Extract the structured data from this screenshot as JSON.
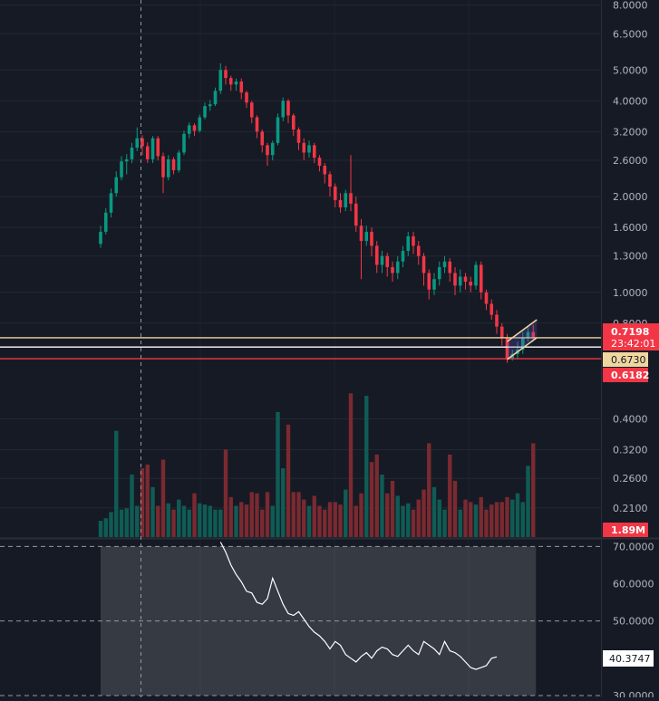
{
  "chart_data": [
    {
      "type": "candlestick",
      "scale": "log",
      "price_axis": {
        "ticks": [
          "8.0000",
          "6.5000",
          "5.0000",
          "4.0000",
          "3.2000",
          "2.6000",
          "2.0000",
          "1.6000",
          "1.3000",
          "1.0000",
          "0.8000",
          "0.4000",
          "0.3200",
          "0.2600",
          "0.2100"
        ],
        "tick_values": [
          8.0,
          6.5,
          5.0,
          4.0,
          3.2,
          2.6,
          2.0,
          1.6,
          1.3,
          1.0,
          0.8,
          0.4,
          0.32,
          0.26,
          0.21
        ],
        "range": [
          0.17,
          8.3
        ]
      },
      "price_labels": {
        "current_price": "0.7198",
        "countdown": "23:42:01",
        "crosshair_price": "0.6730",
        "support_price": "0.6182"
      },
      "volume_label": "1.89M",
      "horizontal_lines": [
        {
          "value": 0.7198,
          "color": "#f0d7a0"
        },
        {
          "value": 0.673,
          "color": "#ffffff"
        },
        {
          "value": 0.6182,
          "color": "#f23645"
        }
      ],
      "channel": {
        "lower": [
          0.615,
          0.72
        ],
        "upper": [
          0.7,
          0.82
        ]
      },
      "candles": [
        [
          1.42,
          1.55,
          1.38,
          1.62
        ],
        [
          1.55,
          1.78,
          1.52,
          1.84
        ],
        [
          1.78,
          2.05,
          1.72,
          2.12
        ],
        [
          2.05,
          2.3,
          2.0,
          2.4
        ],
        [
          2.3,
          2.58,
          2.25,
          2.68
        ],
        [
          2.58,
          2.62,
          2.35,
          2.72
        ],
        [
          2.62,
          2.85,
          2.55,
          2.95
        ],
        [
          2.85,
          3.05,
          2.78,
          3.3
        ],
        [
          3.05,
          2.88,
          2.7,
          3.12
        ],
        [
          2.88,
          2.62,
          2.55,
          2.96
        ],
        [
          2.62,
          3.05,
          2.55,
          3.1
        ],
        [
          3.05,
          2.68,
          2.6,
          3.1
        ],
        [
          2.68,
          2.3,
          2.05,
          2.75
        ],
        [
          2.3,
          2.62,
          2.25,
          2.7
        ],
        [
          2.62,
          2.42,
          2.35,
          2.66
        ],
        [
          2.42,
          2.75,
          2.38,
          2.8
        ],
        [
          2.75,
          3.15,
          2.7,
          3.22
        ],
        [
          3.15,
          3.35,
          3.05,
          3.42
        ],
        [
          3.35,
          3.22,
          3.1,
          3.4
        ],
        [
          3.22,
          3.55,
          3.18,
          3.62
        ],
        [
          3.55,
          3.85,
          3.5,
          3.95
        ],
        [
          3.85,
          3.9,
          3.72,
          4.02
        ],
        [
          3.9,
          4.3,
          3.85,
          4.4
        ],
        [
          4.3,
          5.0,
          4.2,
          5.25
        ],
        [
          5.0,
          4.72,
          4.5,
          5.15
        ],
        [
          4.72,
          4.5,
          4.3,
          4.8
        ],
        [
          4.5,
          4.6,
          4.3,
          4.7
        ],
        [
          4.6,
          4.25,
          4.05,
          4.7
        ],
        [
          4.25,
          3.95,
          3.8,
          4.3
        ],
        [
          3.95,
          3.55,
          3.4,
          4.0
        ],
        [
          3.55,
          3.2,
          3.05,
          3.6
        ],
        [
          3.2,
          2.9,
          2.75,
          3.25
        ],
        [
          2.9,
          2.7,
          2.5,
          2.95
        ],
        [
          2.7,
          2.95,
          2.6,
          3.0
        ],
        [
          2.95,
          3.55,
          2.9,
          3.65
        ],
        [
          3.55,
          4.0,
          3.45,
          4.1
        ],
        [
          4.0,
          3.6,
          3.4,
          4.05
        ],
        [
          3.6,
          3.25,
          3.1,
          3.65
        ],
        [
          3.25,
          2.95,
          2.8,
          3.3
        ],
        [
          2.95,
          2.75,
          2.6,
          3.05
        ],
        [
          2.75,
          2.9,
          2.65,
          3.0
        ],
        [
          2.9,
          2.65,
          2.55,
          2.95
        ],
        [
          2.65,
          2.5,
          2.4,
          2.7
        ],
        [
          2.5,
          2.35,
          2.2,
          2.55
        ],
        [
          2.35,
          2.15,
          2.0,
          2.4
        ],
        [
          2.15,
          1.95,
          1.85,
          2.2
        ],
        [
          1.95,
          1.85,
          1.78,
          2.05
        ],
        [
          1.85,
          2.05,
          1.8,
          2.1
        ],
        [
          2.05,
          1.9,
          1.8,
          2.7
        ],
        [
          1.9,
          1.62,
          1.55,
          2.0
        ],
        [
          1.62,
          1.45,
          1.1,
          1.7
        ],
        [
          1.45,
          1.55,
          1.4,
          1.62
        ],
        [
          1.55,
          1.4,
          1.3,
          1.6
        ],
        [
          1.4,
          1.22,
          1.15,
          1.45
        ],
        [
          1.22,
          1.3,
          1.15,
          1.35
        ],
        [
          1.3,
          1.2,
          1.12,
          1.33
        ],
        [
          1.2,
          1.15,
          1.08,
          1.25
        ],
        [
          1.15,
          1.25,
          1.1,
          1.3
        ],
        [
          1.25,
          1.35,
          1.2,
          1.4
        ],
        [
          1.35,
          1.5,
          1.3,
          1.55
        ],
        [
          1.5,
          1.4,
          1.32,
          1.55
        ],
        [
          1.4,
          1.3,
          1.22,
          1.45
        ],
        [
          1.3,
          1.15,
          1.05,
          1.33
        ],
        [
          1.15,
          1.02,
          0.95,
          1.18
        ],
        [
          1.02,
          1.1,
          0.98,
          1.15
        ],
        [
          1.1,
          1.2,
          1.05,
          1.25
        ],
        [
          1.2,
          1.25,
          1.15,
          1.3
        ],
        [
          1.25,
          1.15,
          1.08,
          1.28
        ],
        [
          1.15,
          1.05,
          0.98,
          1.2
        ],
        [
          1.05,
          1.12,
          1.0,
          1.18
        ],
        [
          1.12,
          1.08,
          1.02,
          1.15
        ],
        [
          1.08,
          1.05,
          1.0,
          1.12
        ],
        [
          1.05,
          1.22,
          1.02,
          1.25
        ],
        [
          1.22,
          1.0,
          0.95,
          1.25
        ],
        [
          1.0,
          0.92,
          0.88,
          1.02
        ],
        [
          0.92,
          0.85,
          0.82,
          0.95
        ],
        [
          0.85,
          0.78,
          0.74,
          0.88
        ],
        [
          0.78,
          0.72,
          0.68,
          0.8
        ],
        [
          0.72,
          0.62,
          0.6,
          0.74
        ],
        [
          0.62,
          0.64,
          0.61,
          0.66
        ],
        [
          0.64,
          0.66,
          0.62,
          0.7
        ],
        [
          0.66,
          0.72,
          0.64,
          0.75
        ],
        [
          0.72,
          0.75,
          0.7,
          0.78
        ],
        [
          0.75,
          0.7198,
          0.7,
          0.79
        ]
      ],
      "volume": [
        0.13,
        0.15,
        0.2,
        0.85,
        0.22,
        0.23,
        0.5,
        0.25,
        0.55,
        0.58,
        0.4,
        0.25,
        0.62,
        0.27,
        0.22,
        0.3,
        0.25,
        0.22,
        0.35,
        0.27,
        0.26,
        0.25,
        0.22,
        0.22,
        0.7,
        0.32,
        0.25,
        0.28,
        0.26,
        0.36,
        0.35,
        0.22,
        0.36,
        0.25,
        1.0,
        0.55,
        0.9,
        0.36,
        0.36,
        0.3,
        0.25,
        0.33,
        0.25,
        0.22,
        0.28,
        0.28,
        0.26,
        0.38,
        1.15,
        0.25,
        0.35,
        1.13,
        0.6,
        0.66,
        0.5,
        0.35,
        0.45,
        0.33,
        0.25,
        0.27,
        0.22,
        0.3,
        0.38,
        0.75,
        0.4,
        0.3,
        0.22,
        0.66,
        0.45,
        0.22,
        0.3,
        0.28,
        0.26,
        0.32,
        0.22,
        0.26,
        0.28,
        0.28,
        0.32,
        0.3,
        0.35,
        0.28,
        0.57,
        0.75
      ]
    },
    {
      "type": "line",
      "axis": {
        "ticks": [
          "70.0000",
          "60.0000",
          "50.0000",
          "40.0000",
          "30.0000"
        ],
        "tick_values": [
          70,
          60,
          50,
          40,
          30
        ],
        "range": [
          29.5,
          71.8
        ]
      },
      "levels": [
        70,
        50,
        30
      ],
      "current_label": "40.3747",
      "start_index": 23,
      "values": [
        71.2,
        68.5,
        65.0,
        62.5,
        60.5,
        58.0,
        57.5,
        55.0,
        54.5,
        56.0,
        61.5,
        58.0,
        54.5,
        52.0,
        51.5,
        52.5,
        50.5,
        48.5,
        47.0,
        46.0,
        44.5,
        42.5,
        44.5,
        43.5,
        41.0,
        40.0,
        39.0,
        40.5,
        41.5,
        40.0,
        42.0,
        43.0,
        42.5,
        41.0,
        40.5,
        42.0,
        43.5,
        42.0,
        41.0,
        44.5,
        43.5,
        42.5,
        41.0,
        44.5,
        42.0,
        41.5,
        40.5,
        39.0,
        37.5,
        37.0,
        37.5,
        38.0,
        40.0,
        40.3747
      ]
    }
  ]
}
